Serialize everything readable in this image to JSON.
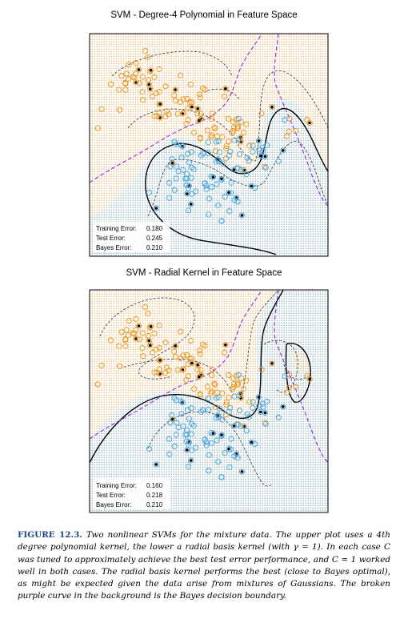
{
  "plots": [
    {
      "title": "SVM - Degree-4 Polynomial in Feature Space",
      "errors": [
        {
          "label": "Training Error:",
          "value": "0.180"
        },
        {
          "label": "Test Error:",
          "value": "0.245"
        },
        {
          "label": "Bayes Error:",
          "value": "0.210"
        }
      ]
    },
    {
      "title": "SVM - Radial Kernel in Feature Space",
      "errors": [
        {
          "label": "Training Error:",
          "value": "0.160"
        },
        {
          "label": "Test Error:",
          "value": "0.218"
        },
        {
          "label": "Bayes Error:",
          "value": "0.210"
        }
      ]
    }
  ],
  "caption": {
    "label": "FIGURE 12.3.",
    "text": "Two nonlinear SVMs for the mixture data. The upper plot uses a 4th degree polynomial kernel, the lower a radial basis kernel (with γ = 1). In each case C was tuned to approximately achieve the best test error performance, and C = 1 worked well in both cases. The radial basis kernel performs the best (close to Bayes optimal), as might be expected given the data arise from mixtures of Gaussians. The broken purple curve in the background is the Bayes decision boundary."
  },
  "colors": {
    "orange": "#e69a2a",
    "blue": "#4ea6dc",
    "bayes": "#8b2be2"
  }
}
